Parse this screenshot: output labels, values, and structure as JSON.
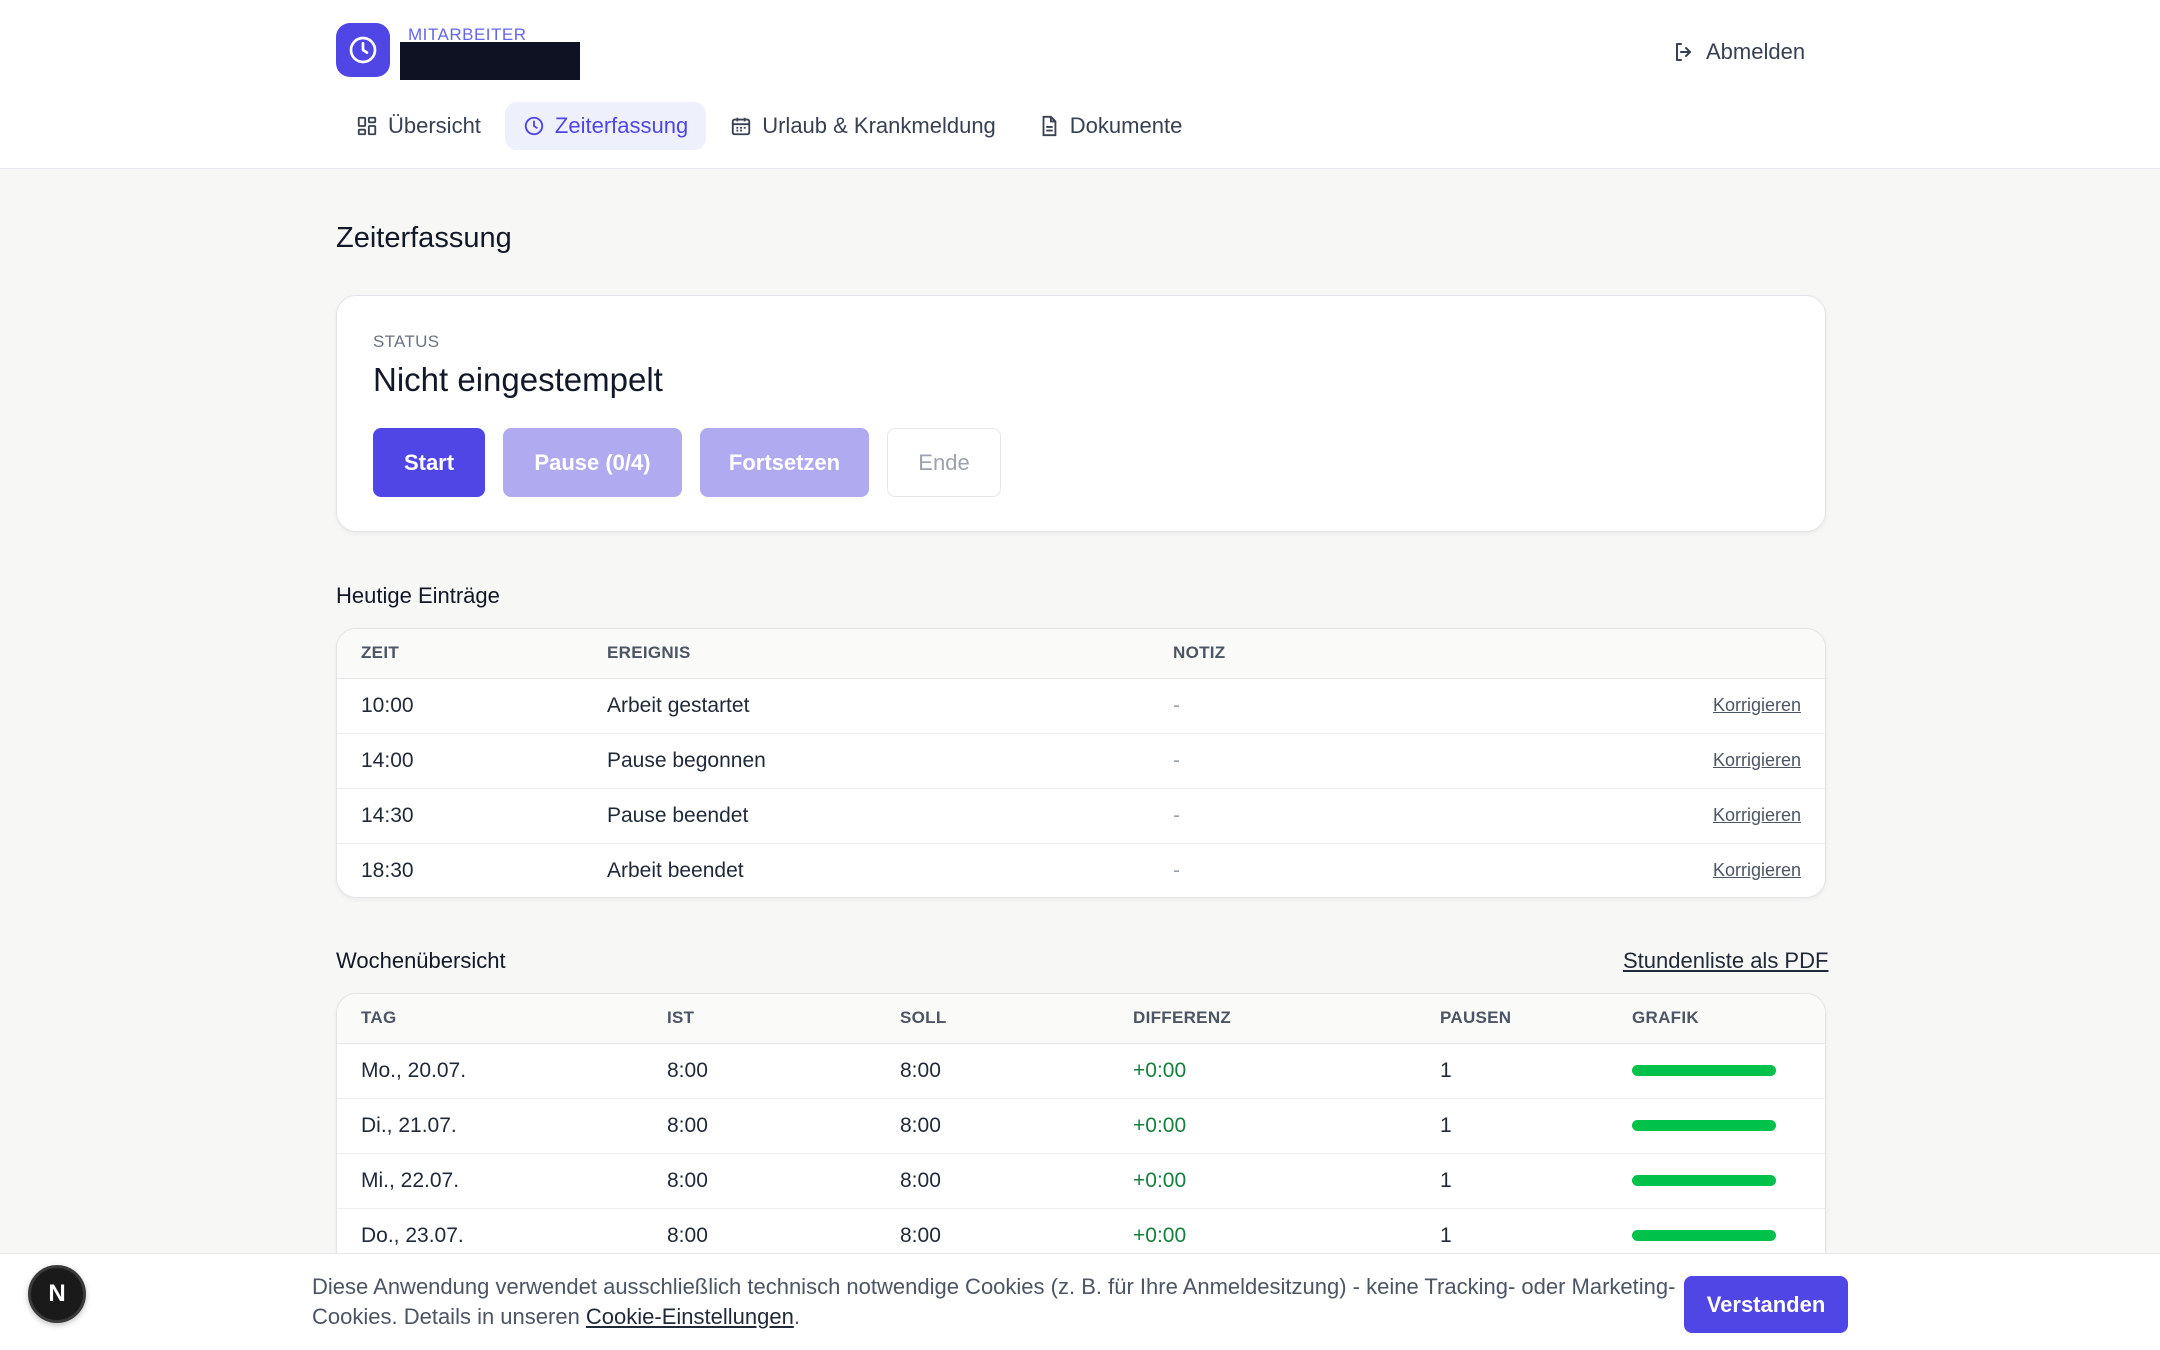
{
  "header": {
    "role_label": "MITARBEITER",
    "logout_label": "Abmelden"
  },
  "nav": {
    "items": [
      {
        "label": "Übersicht",
        "icon": "grid-icon"
      },
      {
        "label": "Zeiterfassung",
        "icon": "clock-icon",
        "active": true
      },
      {
        "label": "Urlaub & Krankmeldung",
        "icon": "calendar-icon"
      },
      {
        "label": "Dokumente",
        "icon": "document-icon"
      }
    ]
  },
  "page": {
    "title": "Zeiterfassung"
  },
  "status": {
    "label": "STATUS",
    "value": "Nicht eingestempelt",
    "buttons": {
      "start": "Start",
      "pause": "Pause (0/4)",
      "resume": "Fortsetzen",
      "end": "Ende"
    }
  },
  "entries": {
    "title": "Heutige Einträge",
    "columns": [
      "ZEIT",
      "EREIGNIS",
      "NOTIZ"
    ],
    "action_label": "Korrigieren",
    "rows": [
      {
        "time": "10:00",
        "event": "Arbeit gestartet",
        "note": "-"
      },
      {
        "time": "14:00",
        "event": "Pause begonnen",
        "note": "-"
      },
      {
        "time": "14:30",
        "event": "Pause beendet",
        "note": "-"
      },
      {
        "time": "18:30",
        "event": "Arbeit beendet",
        "note": "-"
      }
    ]
  },
  "week": {
    "title": "Wochenübersicht",
    "pdf_link": "Stundenliste als PDF",
    "columns": [
      "TAG",
      "IST",
      "SOLL",
      "DIFFERENZ",
      "PAUSEN",
      "GRAFIK"
    ],
    "rows": [
      {
        "day": "Mo., 20.07.",
        "ist": "8:00",
        "soll": "8:00",
        "diff": "+0:00",
        "pauses": "1",
        "fill": 1.0
      },
      {
        "day": "Di., 21.07.",
        "ist": "8:00",
        "soll": "8:00",
        "diff": "+0:00",
        "pauses": "1",
        "fill": 1.0
      },
      {
        "day": "Mi., 22.07.",
        "ist": "8:00",
        "soll": "8:00",
        "diff": "+0:00",
        "pauses": "1",
        "fill": 1.0
      },
      {
        "day": "Do., 23.07.",
        "ist": "8:00",
        "soll": "8:00",
        "diff": "+0:00",
        "pauses": "1",
        "fill": 1.0
      }
    ],
    "bar_color": "#00c24a"
  },
  "cookie": {
    "text_before": "Diese Anwendung verwendet ausschließlich technisch notwendige Cookies (z. B. für Ihre Anmeldesitzung) - keine Tracking- oder Marketing-Cookies. Details in unseren ",
    "link": "Cookie-Einstellungen",
    "text_after": ".",
    "button": "Verstanden"
  },
  "dev_badge": "N",
  "colors": {
    "accent": "#4f46e5",
    "accent_light": "#b0abf0",
    "positive": "#15803d"
  }
}
